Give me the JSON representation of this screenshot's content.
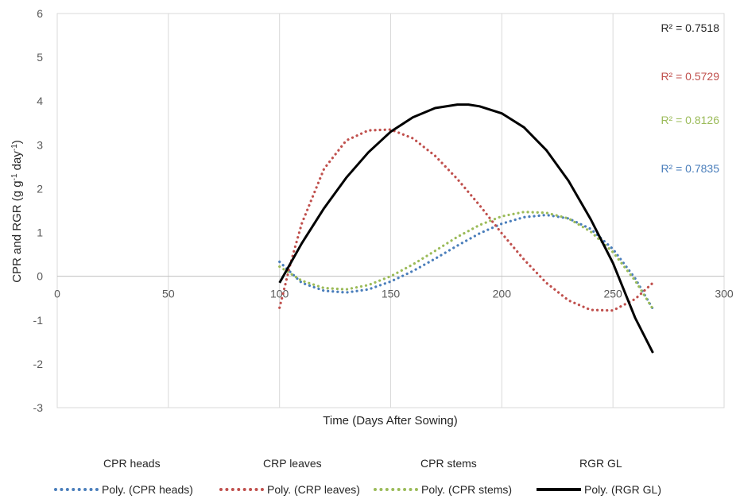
{
  "chart_data": {
    "type": "line",
    "xlabel": "Time (Days After Sowing)",
    "ylabel": "CPR and RGR  (g g-1 day-1)",
    "xlim": [
      0,
      300
    ],
    "ylim": [
      -3,
      6
    ],
    "x_ticks": [
      "0",
      "50",
      "100",
      "150",
      "200",
      "250",
      "300"
    ],
    "y_ticks": [
      "-3",
      "-2",
      "-1",
      "0",
      "1",
      "2",
      "3",
      "4",
      "5",
      "6"
    ],
    "grid": "vertical",
    "legend_position": "bottom",
    "series": [
      {
        "name": "Poly. (CPR heads)",
        "style": "dotted",
        "color": "#4a7ebb",
        "r2": "R² = 0.7835",
        "x": [
          100,
          110,
          120,
          130,
          140,
          150,
          160,
          170,
          180,
          190,
          200,
          210,
          220,
          230,
          240,
          250,
          260,
          268
        ],
        "y": [
          0.33,
          -0.15,
          -0.33,
          -0.37,
          -0.3,
          -0.12,
          0.12,
          0.4,
          0.7,
          0.98,
          1.2,
          1.35,
          1.4,
          1.32,
          1.08,
          0.62,
          -0.05,
          -0.75
        ]
      },
      {
        "name": "Poly. (CRP leaves)",
        "style": "dotted",
        "color": "#c0504d",
        "r2": "R² = 0.5729",
        "x": [
          100,
          105,
          110,
          120,
          130,
          140,
          150,
          160,
          170,
          180,
          190,
          200,
          210,
          220,
          230,
          240,
          250,
          260,
          268
        ],
        "y": [
          -0.72,
          0.3,
          1.2,
          2.45,
          3.1,
          3.33,
          3.35,
          3.15,
          2.75,
          2.22,
          1.62,
          0.98,
          0.38,
          -0.15,
          -0.55,
          -0.77,
          -0.78,
          -0.52,
          -0.15
        ]
      },
      {
        "name": "Poly. (CPR stems)",
        "style": "dotted",
        "color": "#9bbb59",
        "r2": "R² = 0.8126",
        "x": [
          100,
          110,
          120,
          130,
          140,
          150,
          160,
          170,
          180,
          190,
          200,
          210,
          220,
          230,
          240,
          250,
          260,
          268
        ],
        "y": [
          0.22,
          -0.1,
          -0.27,
          -0.3,
          -0.2,
          0.0,
          0.27,
          0.58,
          0.9,
          1.17,
          1.37,
          1.47,
          1.45,
          1.32,
          1.02,
          0.55,
          -0.1,
          -0.75
        ]
      },
      {
        "name": "Poly. (RGR GL)",
        "style": "solid",
        "color": "#000000",
        "r2": "R² = 0.7518",
        "x": [
          100,
          110,
          120,
          130,
          140,
          150,
          160,
          170,
          180,
          185,
          190,
          200,
          210,
          220,
          230,
          240,
          250,
          260,
          268
        ],
        "y": [
          -0.15,
          0.75,
          1.55,
          2.25,
          2.83,
          3.3,
          3.63,
          3.84,
          3.92,
          3.92,
          3.88,
          3.72,
          3.4,
          2.88,
          2.18,
          1.3,
          0.3,
          -0.95,
          -1.75
        ]
      }
    ],
    "legend_labels": [
      "CPR heads",
      "CRP leaves",
      "CPR stems",
      "RGR GL"
    ]
  }
}
